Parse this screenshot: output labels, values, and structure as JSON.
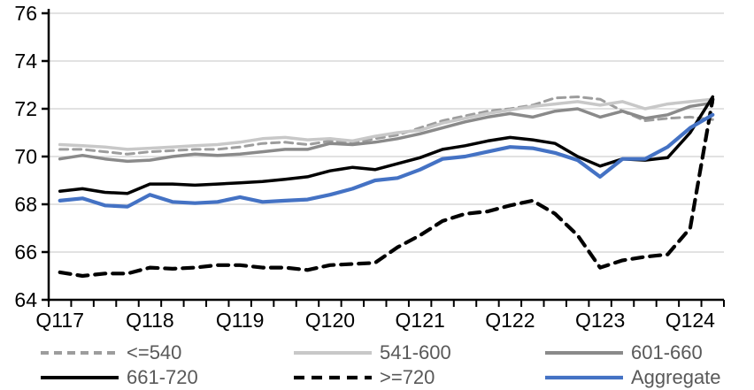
{
  "chart_data": {
    "type": "line",
    "title": "",
    "grid": "horizontal",
    "legend_position": "bottom",
    "y_axis": {
      "min": 64,
      "max": 76,
      "tick_step": 2,
      "tick_labels": [
        "64",
        "66",
        "68",
        "70",
        "72",
        "74",
        "76"
      ]
    },
    "x_axis": {
      "visible_tick_labels": [
        "Q117",
        "Q118",
        "Q119",
        "Q120",
        "Q121",
        "Q122",
        "Q123",
        "Q124"
      ],
      "label_every_n_categories": 4,
      "minor_ticks": "every_quarter"
    },
    "x_categories": [
      "Q117",
      "Q217",
      "Q317",
      "Q417",
      "Q118",
      "Q218",
      "Q318",
      "Q418",
      "Q119",
      "Q219",
      "Q319",
      "Q419",
      "Q120",
      "Q220",
      "Q320",
      "Q420",
      "Q121",
      "Q221",
      "Q321",
      "Q421",
      "Q122",
      "Q222",
      "Q322",
      "Q422",
      "Q123",
      "Q223",
      "Q323",
      "Q423",
      "Q124",
      "Q224"
    ],
    "series": [
      {
        "name": "<=540",
        "color": "#9d9d9d",
        "line_style": "dashed",
        "values": [
          70.3,
          70.3,
          70.2,
          70.1,
          70.2,
          70.25,
          70.3,
          70.3,
          70.4,
          70.55,
          70.6,
          70.5,
          70.65,
          70.55,
          70.75,
          70.9,
          71.2,
          71.5,
          71.7,
          71.9,
          72.0,
          72.15,
          72.45,
          72.5,
          72.4,
          71.9,
          71.5,
          71.6,
          71.65,
          71.55
        ]
      },
      {
        "name": "541-600",
        "color": "#c8c8c8",
        "line_style": "solid",
        "values": [
          70.5,
          70.45,
          70.4,
          70.3,
          70.35,
          70.4,
          70.45,
          70.5,
          70.6,
          70.75,
          70.8,
          70.7,
          70.75,
          70.65,
          70.85,
          71.0,
          71.1,
          71.4,
          71.6,
          71.8,
          71.95,
          72.1,
          72.2,
          72.3,
          72.15,
          72.3,
          72.0,
          72.2,
          72.3,
          72.4
        ]
      },
      {
        "name": "601-660",
        "color": "#8a8a8a",
        "line_style": "solid",
        "values": [
          69.9,
          70.05,
          69.9,
          69.8,
          69.85,
          70.0,
          70.1,
          70.05,
          70.1,
          70.2,
          70.3,
          70.3,
          70.55,
          70.5,
          70.6,
          70.75,
          70.95,
          71.2,
          71.45,
          71.65,
          71.8,
          71.65,
          71.9,
          72.0,
          71.65,
          71.9,
          71.6,
          71.75,
          72.1,
          72.25
        ]
      },
      {
        "name": "661-720",
        "color": "#000000",
        "line_style": "solid",
        "values": [
          68.55,
          68.65,
          68.5,
          68.45,
          68.85,
          68.85,
          68.8,
          68.85,
          68.9,
          68.95,
          69.05,
          69.15,
          69.4,
          69.55,
          69.45,
          69.7,
          69.95,
          70.3,
          70.45,
          70.65,
          70.8,
          70.7,
          70.55,
          70.0,
          69.6,
          69.9,
          69.85,
          69.95,
          71.0,
          72.5
        ]
      },
      {
        "name": ">=720",
        "color": "#000000",
        "line_style": "dashed_bold",
        "values": [
          65.15,
          65.0,
          65.1,
          65.1,
          65.35,
          65.3,
          65.35,
          65.45,
          65.45,
          65.35,
          65.35,
          65.25,
          65.45,
          65.5,
          65.55,
          66.2,
          66.7,
          67.3,
          67.6,
          67.7,
          67.95,
          68.15,
          67.6,
          66.7,
          65.35,
          65.65,
          65.8,
          65.9,
          67.0,
          72.4
        ]
      },
      {
        "name": "Aggregate",
        "color": "#4472c4",
        "line_style": "solid_bold",
        "values": [
          68.15,
          68.25,
          67.95,
          67.9,
          68.4,
          68.1,
          68.05,
          68.1,
          68.3,
          68.1,
          68.15,
          68.2,
          68.4,
          68.65,
          69.0,
          69.1,
          69.45,
          69.9,
          70.0,
          70.2,
          70.4,
          70.35,
          70.15,
          69.85,
          69.15,
          69.9,
          69.9,
          70.4,
          71.2,
          71.75
        ]
      }
    ],
    "colors": {
      "gridline": "#d9d9d9",
      "axis": "#000000",
      "tick_text": "#000000",
      "legend_text": "#595959"
    }
  }
}
